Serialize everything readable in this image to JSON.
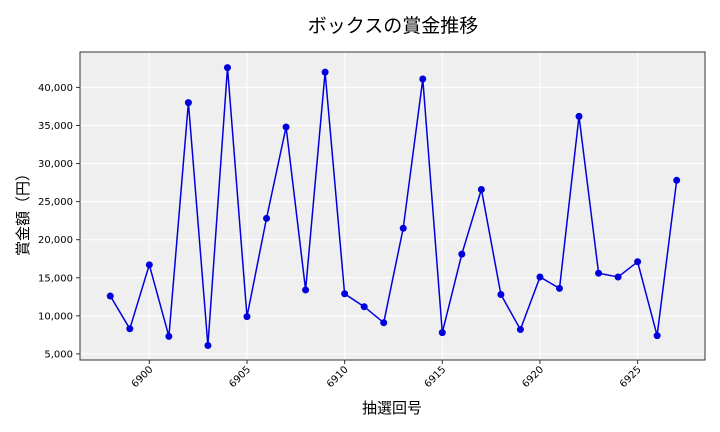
{
  "chart_data": {
    "type": "line",
    "title": "ボックスの賞金推移",
    "xlabel": "抽選回号",
    "ylabel": "賞金額（円）",
    "x": [
      6898,
      6899,
      6900,
      6901,
      6902,
      6903,
      6904,
      6905,
      6906,
      6907,
      6908,
      6909,
      6910,
      6911,
      6912,
      6913,
      6914,
      6915,
      6916,
      6917,
      6918,
      6919,
      6920,
      6921,
      6922,
      6923,
      6924,
      6925,
      6926,
      6927
    ],
    "series": [
      {
        "name": "ボックス",
        "color": "#0000dd",
        "values": [
          12600,
          8300,
          16700,
          7300,
          38000,
          6100,
          42600,
          9900,
          22800,
          34800,
          13400,
          42000,
          12900,
          11200,
          9100,
          21500,
          41100,
          7800,
          18100,
          26600,
          12800,
          8200,
          15100,
          13600,
          36200,
          15600,
          15100,
          17100,
          7400,
          27800
        ]
      }
    ],
    "xticks": [
      6900,
      6905,
      6910,
      6915,
      6920,
      6925
    ],
    "xtick_labels": [
      "6900",
      "6905",
      "6910",
      "6915",
      "6920",
      "6925"
    ],
    "yticks": [
      5000,
      10000,
      15000,
      20000,
      25000,
      30000,
      35000,
      40000
    ],
    "ytick_labels": [
      "5,000",
      "10,000",
      "15,000",
      "20,000",
      "25,000",
      "30,000",
      "35,000",
      "40,000"
    ],
    "xlim": [
      6896.45,
      6928.45
    ],
    "ylim": [
      4200,
      44650
    ],
    "grid": true,
    "legend": false,
    "background": "#efefef",
    "grid_color": "#ffffff"
  }
}
